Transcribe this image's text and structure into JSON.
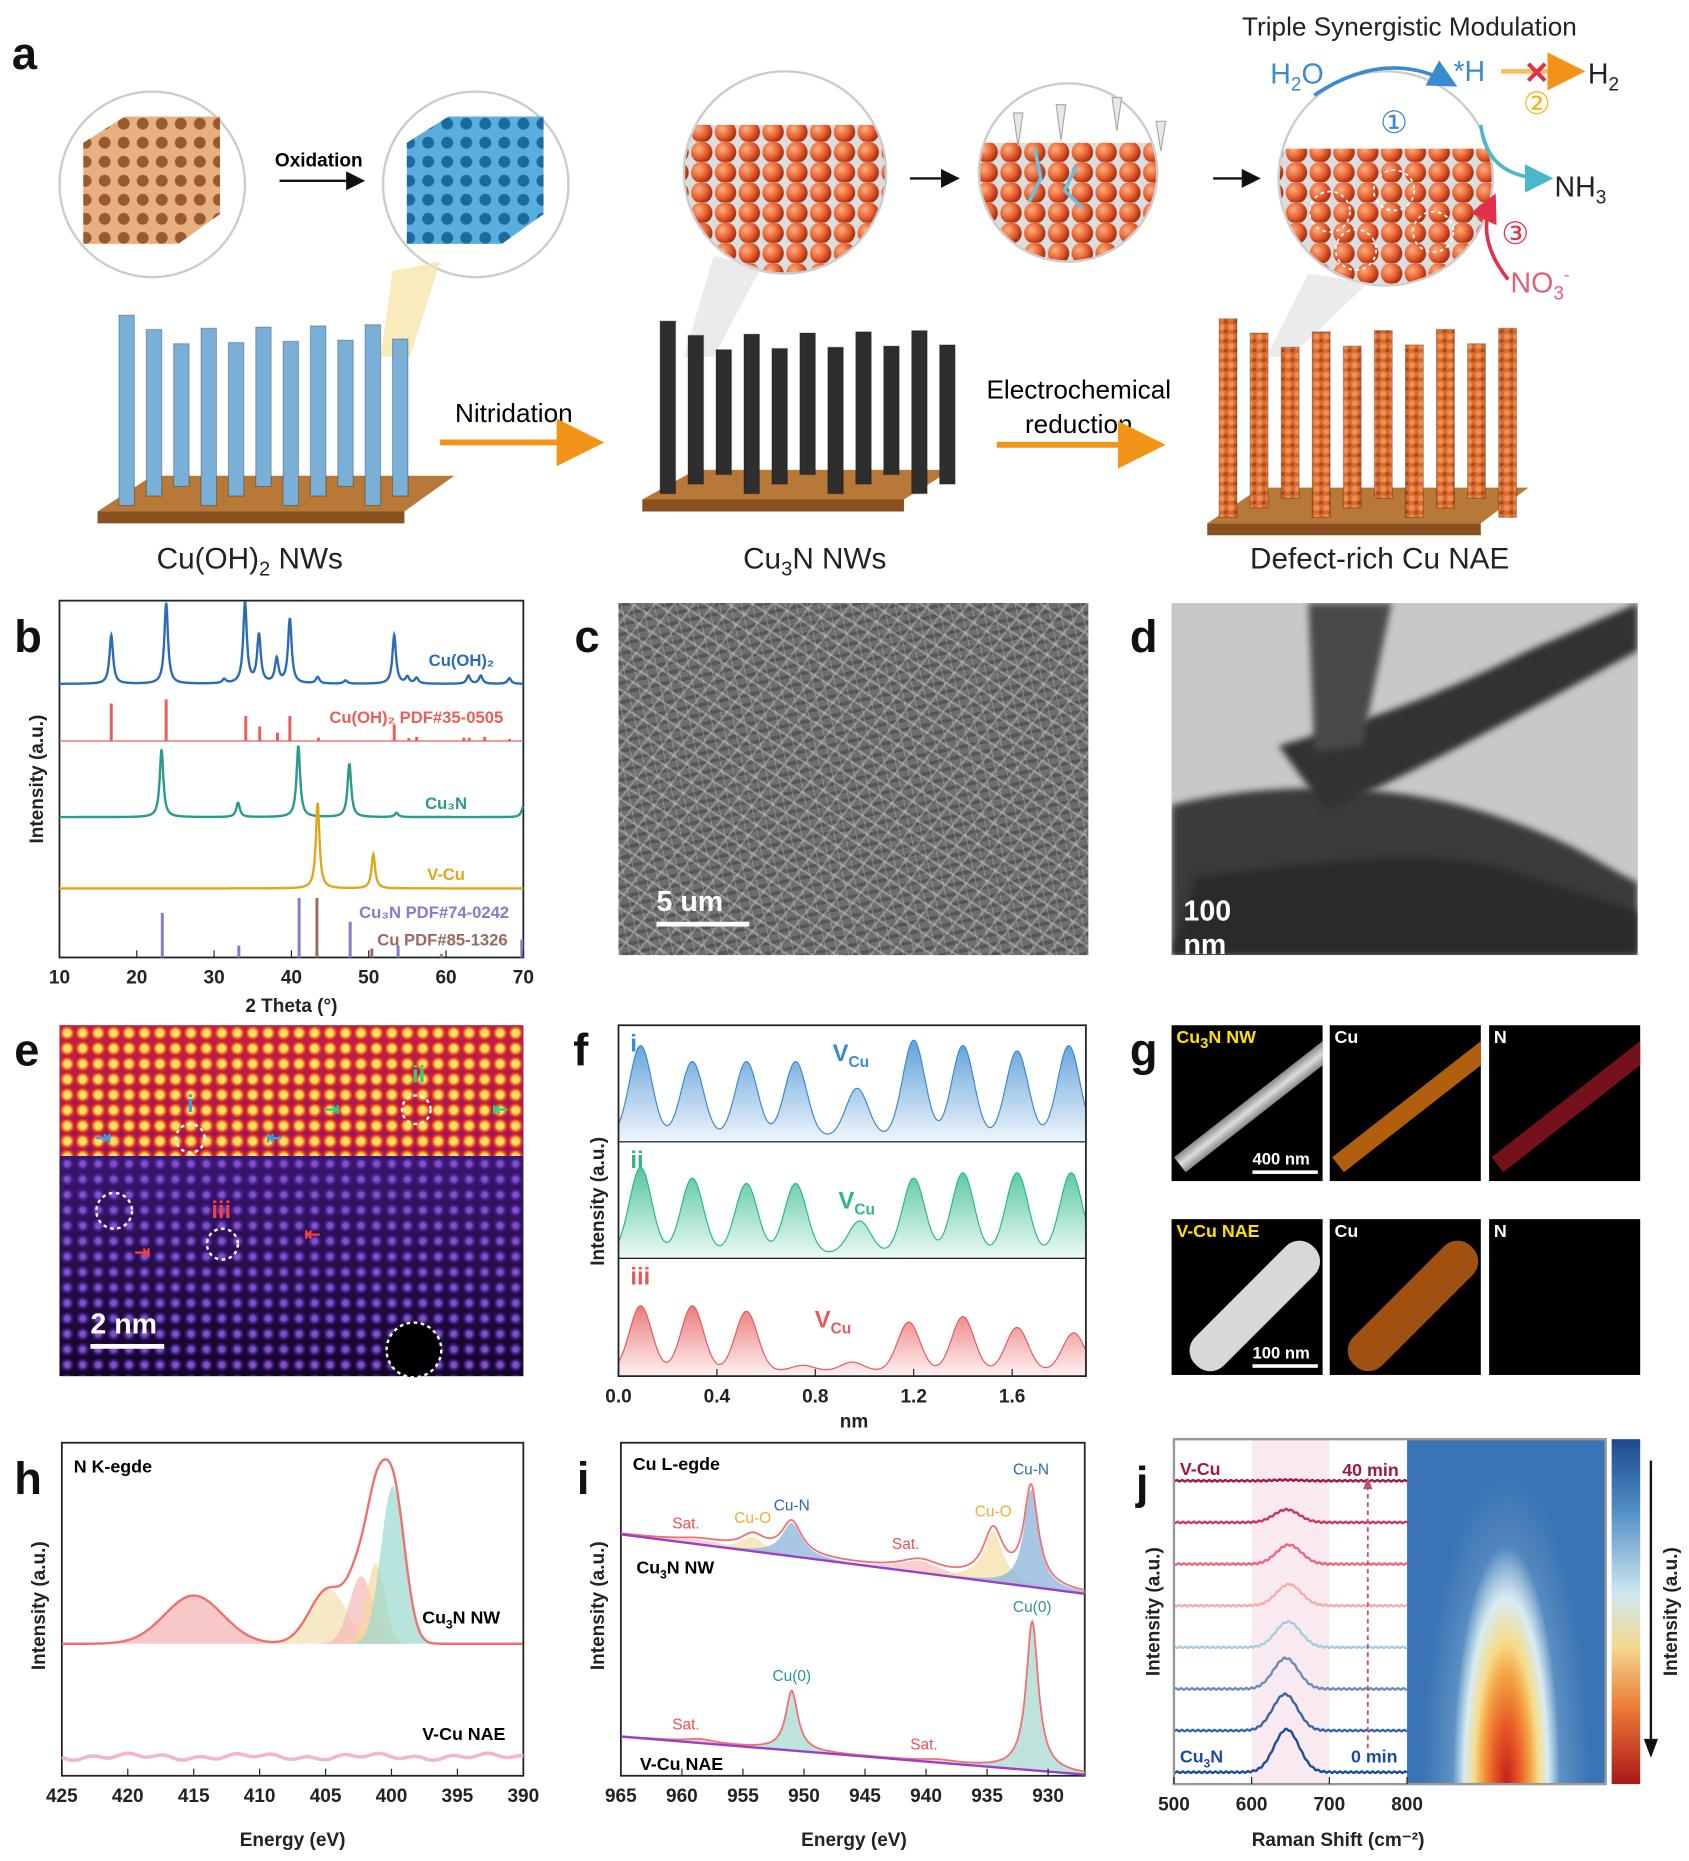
{
  "panel_labels": {
    "a": "a",
    "b": "b",
    "c": "c",
    "d": "d",
    "e": "e",
    "f": "f",
    "g": "g",
    "h": "h",
    "i": "i",
    "j": "j"
  },
  "schematic": {
    "title": "Triple Synergistic Modulation",
    "oxidation": "Oxidation",
    "nitridation": "Nitridation",
    "reduction_line1": "Electrochemical",
    "reduction_line2": "reduction",
    "stage1": {
      "text": "Cu(OH)",
      "sub": "2",
      "tail": " NWs"
    },
    "stage2": {
      "text": "Cu",
      "sub": "3",
      "tail": "N NWs"
    },
    "stage3": {
      "text": "Defect-rich Cu NAE"
    },
    "h2o": {
      "text": "H",
      "sub": "2",
      "tail": "O"
    },
    "h_ads": "*H",
    "h2": {
      "text": "H",
      "sub": "2"
    },
    "blocked": "✕",
    "nh3": {
      "text": "NH",
      "sub": "3"
    },
    "no3": {
      "text": "NO",
      "sub": "3",
      "sup": "-"
    },
    "step1": "①",
    "step2": "②",
    "step3": "③",
    "colors": {
      "blue_path": "#3a8ad0",
      "yellow": "#f0b820",
      "red": "#e0304a",
      "orange_arrow": "#f29418"
    }
  },
  "sem": {
    "scale": "5 um"
  },
  "tem": {
    "scale": "100 nm"
  },
  "haadf": {
    "scale": "2 nm",
    "markers": [
      "i",
      "ii",
      "iii"
    ]
  },
  "eds": {
    "rows": [
      {
        "sample": "Cu",
        "sample_sub": "3",
        "sample_tail": "N NW",
        "el1": "Cu",
        "el2": "N",
        "scale": "400 nm"
      },
      {
        "sample": "V-Cu NAE",
        "el1": "Cu",
        "el2": "N",
        "scale": "100 nm"
      }
    ]
  },
  "chart_data": [
    {
      "panel": "b",
      "type": "line",
      "xlabel": "2 Theta (°)",
      "ylabel": "Intensity (a.u.)",
      "xlim": [
        10,
        70
      ],
      "xticks": [
        10,
        20,
        30,
        40,
        50,
        60,
        70
      ],
      "series": [
        {
          "name": "Cu(OH)2",
          "kind": "curve",
          "color": "#2a6db5",
          "peaks": [
            [
              16.7,
              0.6
            ],
            [
              23.8,
              1.0
            ],
            [
              31.3,
              0.05
            ],
            [
              34.0,
              1.0
            ],
            [
              35.8,
              0.6
            ],
            [
              38.1,
              0.3
            ],
            [
              39.8,
              0.8
            ],
            [
              43.4,
              0.08
            ],
            [
              47.0,
              0.04
            ],
            [
              53.3,
              0.6
            ],
            [
              55.0,
              0.08
            ],
            [
              56.2,
              0.07
            ],
            [
              62.9,
              0.1
            ],
            [
              64.5,
              0.1
            ],
            [
              68.2,
              0.07
            ]
          ]
        },
        {
          "name": "Cu(OH)2 PDF#35-0505",
          "kind": "sticks",
          "color": "#e8605a",
          "peaks": [
            [
              16.7,
              0.9
            ],
            [
              23.8,
              1.0
            ],
            [
              34.1,
              0.6
            ],
            [
              35.9,
              0.35
            ],
            [
              38.2,
              0.2
            ],
            [
              39.8,
              0.6
            ],
            [
              43.5,
              0.08
            ],
            [
              53.3,
              0.4
            ],
            [
              55.2,
              0.07
            ],
            [
              56.2,
              0.1
            ],
            [
              62.3,
              0.08
            ],
            [
              63.0,
              0.08
            ],
            [
              65.0,
              0.1
            ],
            [
              68.2,
              0.05
            ]
          ]
        },
        {
          "name": "Cu3N",
          "kind": "curve",
          "color": "#2a9a8e",
          "peaks": [
            [
              23.2,
              0.95
            ],
            [
              33.1,
              0.2
            ],
            [
              40.9,
              1.0
            ],
            [
              47.5,
              0.75
            ],
            [
              53.6,
              0.06
            ],
            [
              70.0,
              0.15
            ]
          ]
        },
        {
          "name": "V-Cu",
          "kind": "curve",
          "color": "#e0a818",
          "peaks": [
            [
              43.4,
              1.0
            ],
            [
              50.6,
              0.4
            ]
          ]
        },
        {
          "name": "Cu3N PDF#74-0242",
          "kind": "sticks",
          "color": "#8a7ac8",
          "peaks": [
            [
              23.3,
              0.75
            ],
            [
              33.2,
              0.2
            ],
            [
              41.0,
              1.0
            ],
            [
              47.6,
              0.6
            ],
            [
              53.8,
              0.2
            ],
            [
              59.4,
              0.06
            ],
            [
              69.8,
              0.3
            ]
          ]
        },
        {
          "name": "Cu PDF#85-1326",
          "kind": "sticks",
          "color": "#9a6a60",
          "peaks": [
            [
              43.3,
              1.0
            ],
            [
              50.4,
              0.15
            ]
          ]
        }
      ]
    },
    {
      "panel": "f",
      "type": "area",
      "xlabel": "nm",
      "ylabel": "Intensity (a.u.)",
      "xlim": [
        0,
        1.9
      ],
      "xticks": [
        "0.0",
        "0.4",
        "0.8",
        "1.2",
        "1.6"
      ],
      "series": [
        {
          "name": "i",
          "annotation": "V",
          "annotation_sub": "Cu",
          "color": "#3a8ad0",
          "peaks": [
            [
              0.09,
              0.85
            ],
            [
              0.3,
              0.7
            ],
            [
              0.52,
              0.7
            ],
            [
              0.72,
              0.7
            ],
            [
              0.97,
              0.45
            ],
            [
              1.2,
              0.9
            ],
            [
              1.4,
              0.85
            ],
            [
              1.62,
              0.8
            ],
            [
              1.83,
              0.85
            ]
          ]
        },
        {
          "name": "ii",
          "annotation": "V",
          "annotation_sub": "Cu",
          "color": "#2ab888",
          "peaks": [
            [
              0.09,
              0.8
            ],
            [
              0.3,
              0.7
            ],
            [
              0.52,
              0.65
            ],
            [
              0.72,
              0.65
            ],
            [
              0.98,
              0.3
            ],
            [
              1.2,
              0.7
            ],
            [
              1.4,
              0.75
            ],
            [
              1.62,
              0.75
            ],
            [
              1.84,
              0.75
            ]
          ]
        },
        {
          "name": "iii",
          "annotation": "V",
          "annotation_sub": "Cu",
          "color": "#e85a5a",
          "peaks": [
            [
              0.09,
              0.6
            ],
            [
              0.3,
              0.6
            ],
            [
              0.52,
              0.55
            ],
            [
              0.75,
              0.05
            ],
            [
              0.95,
              0.08
            ],
            [
              1.18,
              0.45
            ],
            [
              1.4,
              0.5
            ],
            [
              1.62,
              0.4
            ],
            [
              1.85,
              0.35
            ]
          ]
        }
      ]
    },
    {
      "panel": "h",
      "type": "line",
      "title": "N K-egde",
      "xlabel": "Energy (eV)",
      "ylabel": "Intensity (a.u.)",
      "xlim": [
        425,
        390
      ],
      "xticks": [
        425,
        420,
        415,
        410,
        405,
        400,
        395,
        390
      ],
      "series": [
        {
          "name": "Cu3N NW",
          "color": "#f07070",
          "components": [
            [
              415,
              0.3,
              2.2,
              "#f4b0b0"
            ],
            [
              404.8,
              0.34,
              1.4,
              "#f2e0b0"
            ],
            [
              402.3,
              0.42,
              0.9,
              "#f6b8b8"
            ],
            [
              401.2,
              0.5,
              0.7,
              "#f6d89a"
            ],
            [
              399.9,
              0.98,
              0.9,
              "#9ad8d0"
            ]
          ]
        },
        {
          "name": "V-Cu NAE",
          "color": "#f4b8c0",
          "components": []
        }
      ]
    },
    {
      "panel": "i",
      "type": "line",
      "title": "Cu L-egde",
      "xlabel": "Energy (eV)",
      "ylabel": "Intensity (a.u.)",
      "xlim": [
        965,
        927
      ],
      "xticks": [
        965,
        960,
        955,
        950,
        945,
        940,
        935,
        930
      ],
      "series": [
        {
          "name": "Cu3N NW",
          "color": "#f07070",
          "components": [
            [
              958.5,
              0.04,
              2.5,
              "Sat.",
              "#f8c0c0"
            ],
            [
              954.2,
              0.12,
              1.2,
              "Cu-O",
              "#f6e0a8"
            ],
            [
              951.0,
              0.28,
              1.0,
              "Cu-N",
              "#8ab4dc"
            ],
            [
              940.5,
              0.1,
              2.0,
              "Sat.",
              "#f6c0c0"
            ],
            [
              934.5,
              0.42,
              1.0,
              "Cu-O",
              "#f6e0a8"
            ],
            [
              931.4,
              0.82,
              0.7,
              "Cu-N",
              "#8ab4dc"
            ]
          ]
        },
        {
          "name": "V-Cu NAE",
          "color": "#f07070",
          "components": [
            [
              958.5,
              0.03,
              1.5,
              "Sat.",
              "#f8c0c0"
            ],
            [
              951.0,
              0.5,
              0.6,
              "Cu(0)",
              "#a8d8d0"
            ],
            [
              939.0,
              0.02,
              1.5,
              "Sat.",
              "#f8c0c0"
            ],
            [
              931.3,
              1.25,
              0.6,
              "Cu(0)",
              "#a8d8d0"
            ]
          ]
        }
      ]
    },
    {
      "panel": "j",
      "type": "line",
      "xlabel": "Raman Shift (cm⁻²)",
      "ylabel": "Intensity (a.u.)",
      "colorbar_label": "Intensity (a.u.)",
      "xlim": [
        500,
        800
      ],
      "xticks": [
        500,
        600,
        700,
        800
      ],
      "highlight_range": [
        600,
        700
      ],
      "start_label": "0 min",
      "end_label": "40 min",
      "bottom_sample": "Cu3N",
      "top_sample": "V-Cu",
      "series": [
        {
          "time_order": 0,
          "peak": 645,
          "height": 1.0,
          "color": "#1c4c9c"
        },
        {
          "time_order": 1,
          "peak": 643,
          "height": 0.85,
          "color": "#3a64a8"
        },
        {
          "time_order": 2,
          "peak": 644,
          "height": 0.72,
          "color": "#6a8cbc"
        },
        {
          "time_order": 3,
          "peak": 647,
          "height": 0.6,
          "color": "#a8cce0"
        },
        {
          "time_order": 4,
          "peak": 648,
          "height": 0.5,
          "color": "#f4b0a8"
        },
        {
          "time_order": 5,
          "peak": 648,
          "height": 0.45,
          "color": "#e86a7a"
        },
        {
          "time_order": 6,
          "peak": 645,
          "height": 0.3,
          "color": "#c83a5c"
        },
        {
          "time_order": 7,
          "peak": 645,
          "height": 0.02,
          "color": "#a01a40"
        }
      ]
    }
  ]
}
